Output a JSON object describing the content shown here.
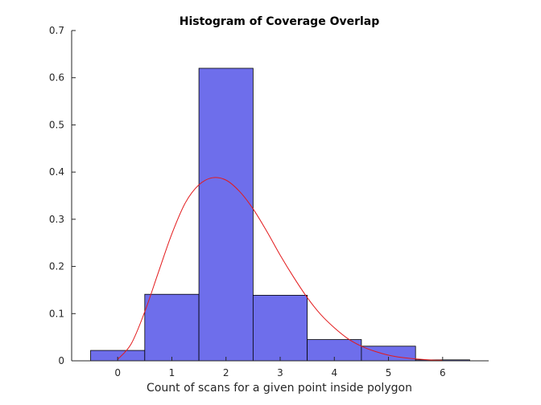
{
  "chart_data": {
    "type": "bar",
    "title": "Histogram of Coverage Overlap",
    "xlabel": "Count of scans for a given point inside polygon",
    "ylabel": "",
    "xlim": [
      -0.85,
      6.85
    ],
    "ylim": [
      0,
      0.7
    ],
    "x_ticks": [
      0,
      1,
      2,
      3,
      4,
      5,
      6
    ],
    "y_ticks": [
      0,
      0.1,
      0.2,
      0.3,
      0.4,
      0.5,
      0.6,
      0.7
    ],
    "bin_width": 1,
    "bins": [
      {
        "center": 0,
        "value": 0.022
      },
      {
        "center": 1,
        "value": 0.141
      },
      {
        "center": 2,
        "value": 0.62
      },
      {
        "center": 3,
        "value": 0.139
      },
      {
        "center": 4,
        "value": 0.045
      },
      {
        "center": 5,
        "value": 0.031
      },
      {
        "center": 6,
        "value": 0.002
      }
    ],
    "curve": {
      "x": [
        0,
        0.25,
        0.5,
        0.75,
        1,
        1.25,
        1.5,
        1.75,
        2,
        2.25,
        2.5,
        2.75,
        3,
        3.25,
        3.5,
        3.75,
        4,
        4.25,
        4.5,
        4.75,
        5,
        5.25,
        5.5,
        5.75,
        6
      ],
      "y": [
        0.003,
        0.036,
        0.104,
        0.187,
        0.269,
        0.335,
        0.373,
        0.388,
        0.383,
        0.359,
        0.322,
        0.275,
        0.224,
        0.177,
        0.134,
        0.098,
        0.07,
        0.047,
        0.031,
        0.02,
        0.012,
        0.007,
        0.004,
        0.002,
        0.001
      ]
    },
    "colors": {
      "bar_fill": "#6e6eeb",
      "bar_edge": "#000000",
      "curve": "#e31a1c",
      "axis": "#262626"
    },
    "grid": false
  }
}
